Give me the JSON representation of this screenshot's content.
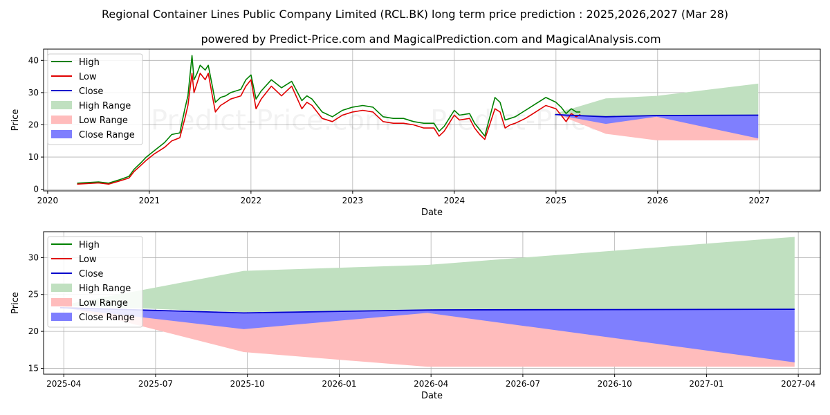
{
  "title": "Regional Container Lines Public Company Limited (RCL.BK) long term price prediction : 2025,2026,2027 (Mar 28)",
  "subtitle": "powered by Predict-Price.com and MagicalPrediction.com and MagicalAnalysis.com",
  "watermark": [
    "Predict-Price.com",
    "Predict-Price.com"
  ],
  "colors": {
    "high": "#008000",
    "low": "#e00000",
    "close": "#0000cc",
    "high_range": "#c0e0c0",
    "low_range": "#ffbcbc",
    "close_range": "#7f7ffe",
    "grid": "#b0b0b0"
  },
  "chart_data": [
    {
      "type": "line",
      "xlabel": "Date",
      "ylabel": "Price",
      "x_ticks": [
        "2020",
        "2021",
        "2022",
        "2023",
        "2024",
        "2025",
        "2026",
        "2027"
      ],
      "x_tick_values": [
        2020.0,
        2021.0,
        2022.0,
        2023.0,
        2024.0,
        2025.0,
        2026.0,
        2027.0
      ],
      "y_ticks": [
        0,
        10,
        20,
        30,
        40
      ],
      "xlim": [
        2019.96,
        2027.6
      ],
      "ylim": [
        -0.5,
        43.5
      ],
      "grid": true,
      "legend": "top-left",
      "legend_entries": [
        "High",
        "Low",
        "Close",
        "High Range",
        "Low Range",
        "Close Range"
      ],
      "series": [
        {
          "name": "Low",
          "x": [
            2020.29,
            2020.4,
            2020.5,
            2020.6,
            2020.7,
            2020.8,
            2020.85,
            2020.92,
            2020.97,
            2021.05,
            2021.15,
            2021.22,
            2021.3,
            2021.35,
            2021.38,
            2021.42,
            2021.44,
            2021.47,
            2021.5,
            2021.55,
            2021.58,
            2021.62,
            2021.65,
            2021.7,
            2021.75,
            2021.8,
            2021.9,
            2021.95,
            2022.0,
            2022.05,
            2022.1,
            2022.2,
            2022.3,
            2022.4,
            2022.5,
            2022.55,
            2022.6,
            2022.7,
            2022.8,
            2022.9,
            2023.0,
            2023.1,
            2023.2,
            2023.3,
            2023.4,
            2023.5,
            2023.6,
            2023.7,
            2023.8,
            2023.85,
            2023.9,
            2024.0,
            2024.05,
            2024.15,
            2024.2,
            2024.25,
            2024.3,
            2024.4,
            2024.45,
            2024.5,
            2024.55,
            2024.6,
            2024.7,
            2024.8,
            2024.9,
            2025.0,
            2025.05,
            2025.1,
            2025.15,
            2025.2,
            2025.24
          ],
          "values": [
            1.6,
            1.8,
            2.0,
            1.6,
            2.5,
            3.5,
            5.5,
            7.5,
            9.0,
            11.0,
            13.0,
            15.0,
            16.0,
            22.0,
            26.0,
            36.0,
            30.0,
            33.0,
            36.0,
            34.0,
            36.0,
            29.0,
            24.0,
            26.0,
            27.0,
            28.0,
            29.0,
            32.0,
            34.0,
            25.0,
            28.0,
            32.0,
            29.0,
            32.0,
            25.0,
            27.0,
            26.0,
            22.0,
            21.0,
            23.0,
            24.0,
            24.5,
            24.0,
            21.0,
            20.5,
            20.5,
            20.0,
            19.0,
            19.0,
            16.5,
            18.0,
            23.0,
            21.5,
            22.0,
            19.0,
            17.0,
            15.5,
            25.0,
            24.0,
            19.0,
            20.0,
            20.5,
            22.0,
            24.0,
            26.0,
            25.0,
            23.0,
            21.0,
            23.5,
            22.5,
            23.2
          ]
        },
        {
          "name": "High",
          "x": [
            2020.29,
            2020.4,
            2020.5,
            2020.6,
            2020.7,
            2020.8,
            2020.85,
            2020.92,
            2020.97,
            2021.05,
            2021.15,
            2021.22,
            2021.3,
            2021.35,
            2021.38,
            2021.42,
            2021.44,
            2021.47,
            2021.5,
            2021.55,
            2021.58,
            2021.62,
            2021.65,
            2021.7,
            2021.75,
            2021.8,
            2021.9,
            2021.95,
            2022.0,
            2022.05,
            2022.1,
            2022.2,
            2022.3,
            2022.4,
            2022.5,
            2022.55,
            2022.6,
            2022.7,
            2022.8,
            2022.9,
            2023.0,
            2023.1,
            2023.2,
            2023.3,
            2023.4,
            2023.5,
            2023.6,
            2023.7,
            2023.8,
            2023.85,
            2023.9,
            2024.0,
            2024.05,
            2024.15,
            2024.2,
            2024.25,
            2024.3,
            2024.4,
            2024.45,
            2024.5,
            2024.55,
            2024.6,
            2024.7,
            2024.8,
            2024.9,
            2025.0,
            2025.05,
            2025.1,
            2025.15,
            2025.2,
            2025.24
          ],
          "values": [
            1.9,
            2.1,
            2.3,
            1.9,
            2.9,
            4.0,
            6.2,
            8.3,
            10.0,
            12.0,
            14.5,
            17.0,
            17.5,
            25.0,
            29.0,
            41.5,
            34.0,
            36.0,
            38.5,
            37.0,
            38.5,
            32.0,
            27.0,
            28.5,
            29.0,
            30.0,
            31.0,
            34.0,
            35.5,
            28.0,
            30.5,
            34.0,
            31.5,
            33.5,
            27.5,
            29.0,
            28.0,
            24.0,
            22.5,
            24.5,
            25.5,
            26.0,
            25.5,
            22.5,
            22.0,
            22.0,
            21.0,
            20.5,
            20.5,
            18.0,
            19.5,
            24.5,
            23.0,
            23.5,
            20.5,
            18.5,
            16.5,
            28.5,
            27.0,
            21.5,
            22.0,
            22.5,
            24.5,
            26.5,
            28.5,
            27.0,
            25.5,
            23.5,
            25.0,
            24.0,
            24.0
          ]
        }
      ]
    },
    {
      "type": "area",
      "xlabel": "Date",
      "ylabel": "Price",
      "x_ticks": [
        "2025-04",
        "2025-07",
        "2025-10",
        "2026-01",
        "2026-04",
        "2026-07",
        "2026-10",
        "2027-01",
        "2027-04"
      ],
      "x_tick_values": [
        2025.0,
        2025.25,
        2025.5,
        2025.75,
        2026.0,
        2026.25,
        2026.5,
        2026.75,
        2027.0
      ],
      "y_ticks": [
        15,
        20,
        25,
        30
      ],
      "xlim": [
        2024.945,
        2027.06
      ],
      "ylim": [
        14.2,
        33.5
      ],
      "grid": true,
      "legend": "top-left",
      "legend_entries": [
        "High",
        "Low",
        "Close",
        "High Range",
        "Low Range",
        "Close Range"
      ],
      "forecast_x": [
        2024.99,
        2025.49,
        2025.99,
        2026.99
      ],
      "high_range": {
        "upper": [
          23.5,
          28.2,
          29.0,
          32.8
        ],
        "lower": [
          23.5,
          22.6,
          23.0,
          23.0
        ]
      },
      "low_range": {
        "upper": [
          23.5,
          21.0,
          22.5,
          16.0
        ],
        "lower": [
          23.5,
          17.2,
          15.2,
          15.2
        ]
      },
      "close_range": {
        "upper": [
          23.2,
          22.5,
          22.9,
          23.0
        ],
        "lower": [
          23.2,
          20.3,
          22.5,
          15.8
        ]
      },
      "series": [
        {
          "name": "Close",
          "x": [
            2024.99,
            2025.49,
            2025.99,
            2026.99
          ],
          "values": [
            23.2,
            22.5,
            22.9,
            23.0
          ]
        }
      ]
    }
  ]
}
